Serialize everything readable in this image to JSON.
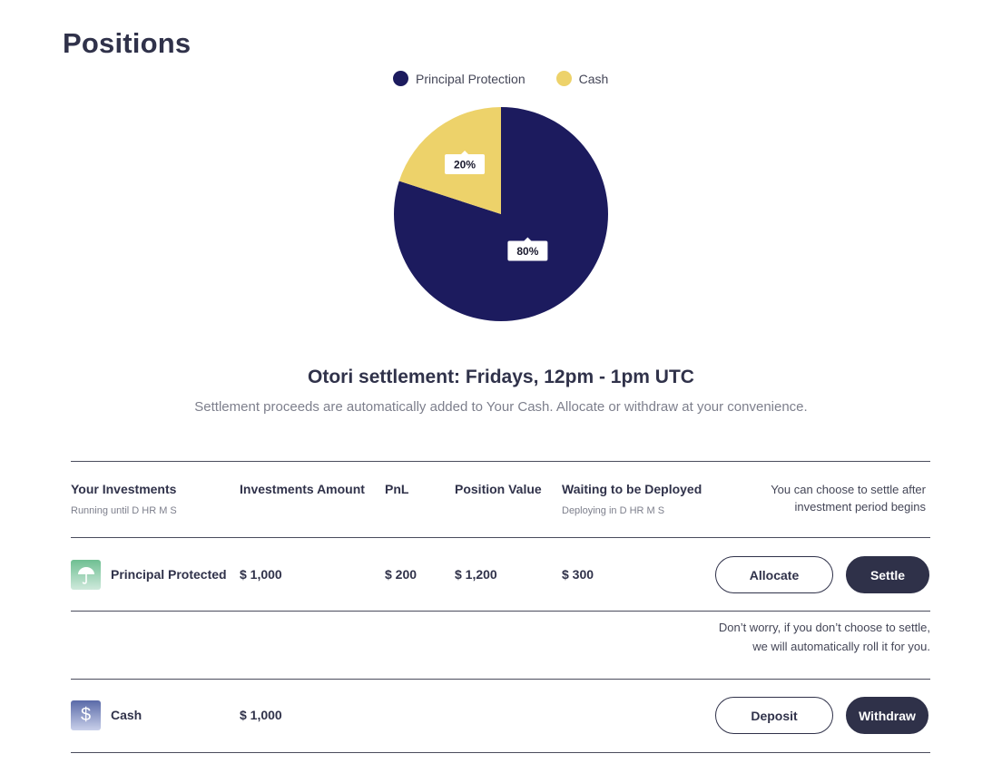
{
  "page": {
    "title": "Positions"
  },
  "chart_data": {
    "type": "pie",
    "labels": [
      "Principal Protection",
      "Cash"
    ],
    "values": [
      80,
      20
    ],
    "data_labels": [
      "80%",
      "20%"
    ],
    "colors": [
      "#1c1b5e",
      "#edd26a"
    ],
    "legend_position": "top"
  },
  "settlement": {
    "title": "Otori settlement: Fridays, 12pm - 1pm UTC",
    "subtitle": "Settlement proceeds are automatically added to Your Cash. Allocate or withdraw at your convenience."
  },
  "table": {
    "headers": {
      "investments": "Your Investments",
      "investments_sub": "Running until D  HR  M  S",
      "amount": "Investments Amount",
      "pnl": "PnL",
      "position_value": "Position Value",
      "waiting": "Waiting to be Deployed",
      "waiting_sub": "Deploying in D  HR  M  S",
      "note": "You can choose to settle after investment period begins"
    },
    "rows": [
      {
        "name": "Principal Protected",
        "icon": "umbrella-icon",
        "amount": "$ 1,000",
        "pnl": "$ 200",
        "position_value": "$ 1,200",
        "waiting": "$ 300",
        "primary_action": "Allocate",
        "secondary_action": "Settle"
      },
      {
        "name": "Cash",
        "icon": "dollar-icon",
        "amount": "$ 1,000",
        "primary_action": "Deposit",
        "secondary_action": "Withdraw"
      }
    ],
    "roll_note": "Don’t worry, if you don’t choose to settle, we will automatically roll it for you."
  }
}
